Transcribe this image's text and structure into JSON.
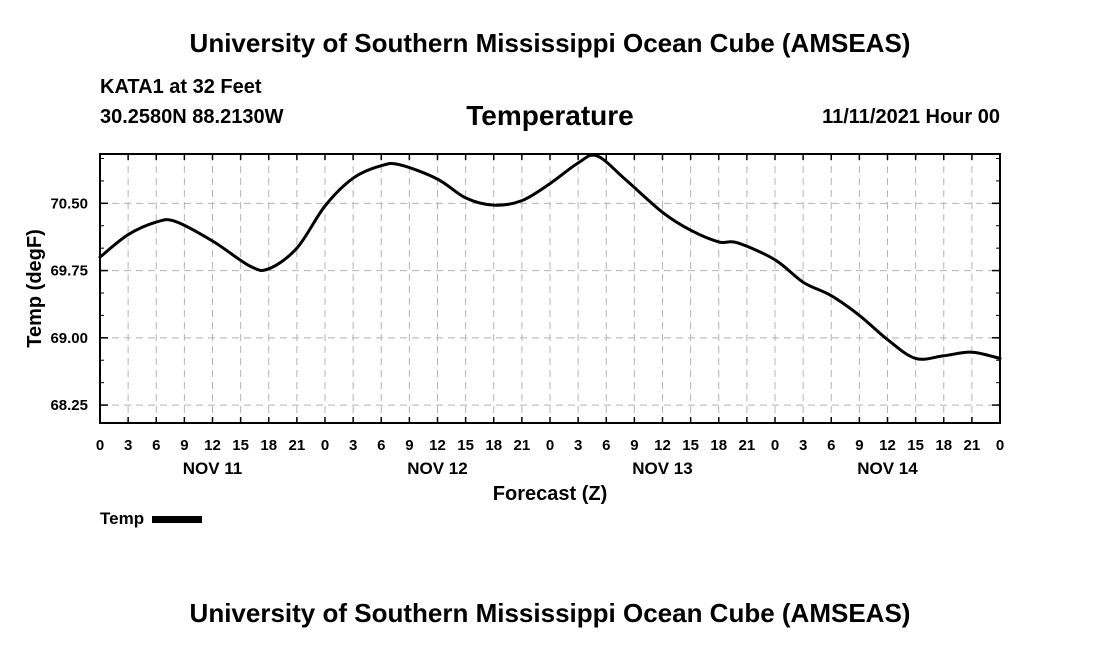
{
  "header": {
    "title": "University of Southern Mississippi Ocean Cube (AMSEAS)",
    "station": "KATA1 at 32 Feet",
    "coords": "30.2580N  88.2130W",
    "parameter": "Temperature",
    "datetime": "11/11/2021 Hour 00"
  },
  "footer": {
    "title": "University of Southern Mississippi Ocean Cube (AMSEAS)"
  },
  "legend": {
    "label": "Temp"
  },
  "chart_data": {
    "type": "line",
    "title": "Temperature",
    "xlabel": "Forecast (Z)",
    "ylabel": "Temp (degF)",
    "xlim": [
      0,
      96
    ],
    "ylim": [
      68.05,
      71.05
    ],
    "grid": true,
    "x_tick_labels": [
      "0",
      "3",
      "6",
      "9",
      "12",
      "15",
      "18",
      "21",
      "0",
      "3",
      "6",
      "9",
      "12",
      "15",
      "18",
      "21",
      "0",
      "3",
      "6",
      "9",
      "12",
      "15",
      "18",
      "21",
      "0",
      "3",
      "6",
      "9",
      "12",
      "15",
      "18",
      "21",
      "0"
    ],
    "day_labels": [
      "NOV 11",
      "NOV 12",
      "NOV 13",
      "NOV 14"
    ],
    "y_ticks": [
      68.25,
      69.0,
      69.75,
      70.5
    ],
    "y_tick_labels": [
      "68.25",
      "69.00",
      "69.75",
      "70.50"
    ],
    "series": [
      {
        "name": "Temp",
        "color": "#000000",
        "x": [
          0,
          3,
          6,
          8,
          12,
          16,
          18,
          21,
          24,
          27,
          30,
          32,
          36,
          39,
          42,
          45,
          48,
          51,
          53,
          56,
          60,
          63,
          66,
          68,
          72,
          75,
          78,
          81,
          84,
          87,
          90,
          93,
          96
        ],
        "values": [
          69.9,
          70.15,
          70.29,
          70.3,
          70.08,
          69.8,
          69.77,
          70.0,
          70.47,
          70.78,
          70.92,
          70.93,
          70.77,
          70.56,
          70.48,
          70.53,
          70.72,
          70.95,
          71.03,
          70.77,
          70.4,
          70.2,
          70.07,
          70.06,
          69.87,
          69.62,
          69.47,
          69.25,
          68.98,
          68.77,
          68.8,
          68.84,
          68.77
        ]
      }
    ]
  }
}
